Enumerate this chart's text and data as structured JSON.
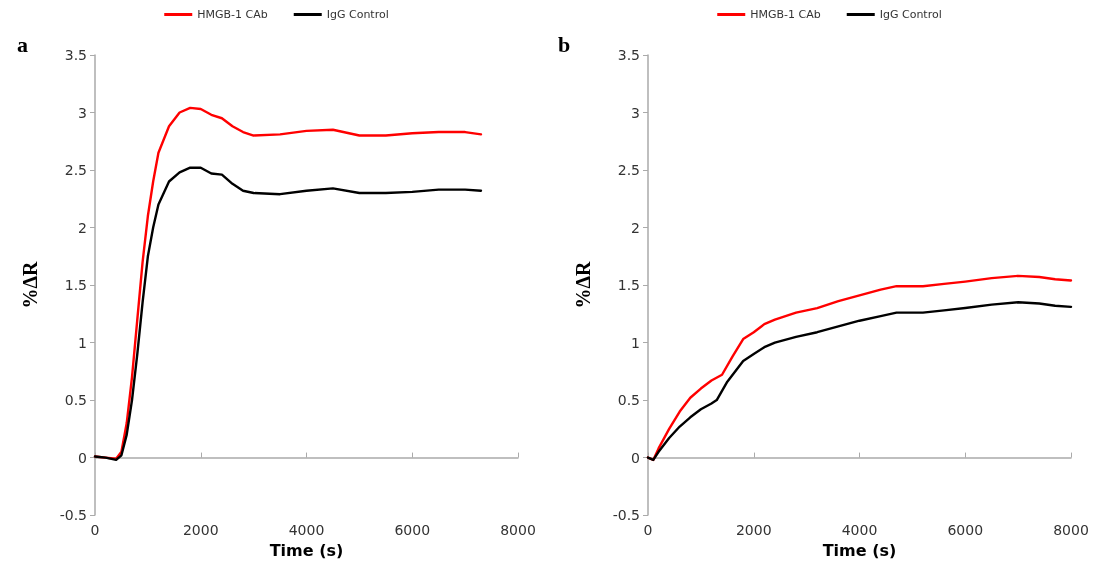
{
  "chart_data": [
    {
      "type": "line",
      "title": "a",
      "xlabel": "Time (s)",
      "ylabel": "%ΔR",
      "xlim": [
        0,
        8000
      ],
      "xticks": [
        0,
        2000,
        4000,
        6000,
        8000
      ],
      "ylim": [
        -0.5,
        3.5
      ],
      "yticks": [
        -0.5,
        0,
        0.5,
        1,
        1.5,
        2,
        2.5,
        3,
        3.5
      ],
      "legend": "top",
      "marker": "none",
      "line_style": "solid",
      "series": [
        {
          "name": "HMGB-1 CAb",
          "color": "#ff0000",
          "x": [
            0,
            200,
            400,
            500,
            600,
            700,
            800,
            900,
            1000,
            1100,
            1200,
            1400,
            1600,
            1800,
            2000,
            2200,
            2400,
            2600,
            2800,
            3000,
            3500,
            4000,
            4500,
            5000,
            5500,
            6000,
            6500,
            7000,
            7300
          ],
          "values": [
            0.01,
            0,
            -0.01,
            0.05,
            0.3,
            0.7,
            1.2,
            1.7,
            2.1,
            2.4,
            2.65,
            2.88,
            3,
            3.04,
            3.03,
            2.98,
            2.95,
            2.88,
            2.83,
            2.8,
            2.81,
            2.84,
            2.85,
            2.8,
            2.8,
            2.82,
            2.83,
            2.83,
            2.81
          ]
        },
        {
          "name": "IgG Control",
          "color": "#000000",
          "x": [
            0,
            200,
            400,
            500,
            600,
            700,
            800,
            900,
            1000,
            1100,
            1200,
            1400,
            1600,
            1800,
            2000,
            2200,
            2400,
            2600,
            2800,
            3000,
            3500,
            4000,
            4500,
            5000,
            5500,
            6000,
            6500,
            7000,
            7300
          ],
          "values": [
            0.01,
            0,
            -0.02,
            0.02,
            0.2,
            0.5,
            0.9,
            1.35,
            1.75,
            2,
            2.2,
            2.4,
            2.48,
            2.52,
            2.52,
            2.47,
            2.46,
            2.38,
            2.32,
            2.3,
            2.29,
            2.32,
            2.34,
            2.3,
            2.3,
            2.31,
            2.33,
            2.33,
            2.32
          ]
        }
      ]
    },
    {
      "type": "line",
      "title": "b",
      "xlabel": "Time (s)",
      "ylabel": "%ΔR",
      "xlim": [
        0,
        8000
      ],
      "xticks": [
        0,
        2000,
        4000,
        6000,
        8000
      ],
      "ylim": [
        -0.5,
        3.5
      ],
      "yticks": [
        -0.5,
        0,
        0.5,
        1,
        1.5,
        2,
        2.5,
        3,
        3.5
      ],
      "legend": "top",
      "marker": "none",
      "line_style": "solid",
      "series": [
        {
          "name": "HMGB-1 CAb",
          "color": "#ff0000",
          "x": [
            0,
            100,
            200,
            400,
            600,
            800,
            1000,
            1200,
            1400,
            1600,
            1800,
            2000,
            2200,
            2400,
            2800,
            3200,
            3600,
            4000,
            4400,
            4700,
            5200,
            5600,
            6000,
            6500,
            7000,
            7400,
            7700,
            8000
          ],
          "values": [
            0,
            -0.02,
            0.08,
            0.25,
            0.4,
            0.52,
            0.6,
            0.67,
            0.72,
            0.88,
            1.03,
            1.09,
            1.16,
            1.2,
            1.26,
            1.3,
            1.36,
            1.41,
            1.46,
            1.49,
            1.49,
            1.51,
            1.53,
            1.56,
            1.58,
            1.57,
            1.55,
            1.54
          ]
        },
        {
          "name": "IgG Control",
          "color": "#000000",
          "x": [
            0,
            100,
            200,
            400,
            600,
            800,
            1000,
            1200,
            1300,
            1500,
            1800,
            2000,
            2200,
            2400,
            2800,
            3200,
            3600,
            4000,
            4400,
            4700,
            5200,
            5600,
            6000,
            6500,
            7000,
            7400,
            7700,
            8000
          ],
          "values": [
            0,
            -0.02,
            0.05,
            0.17,
            0.27,
            0.35,
            0.42,
            0.47,
            0.5,
            0.66,
            0.84,
            0.9,
            0.96,
            1,
            1.05,
            1.09,
            1.14,
            1.19,
            1.23,
            1.26,
            1.26,
            1.28,
            1.3,
            1.33,
            1.35,
            1.34,
            1.32,
            1.31
          ]
        }
      ]
    }
  ]
}
